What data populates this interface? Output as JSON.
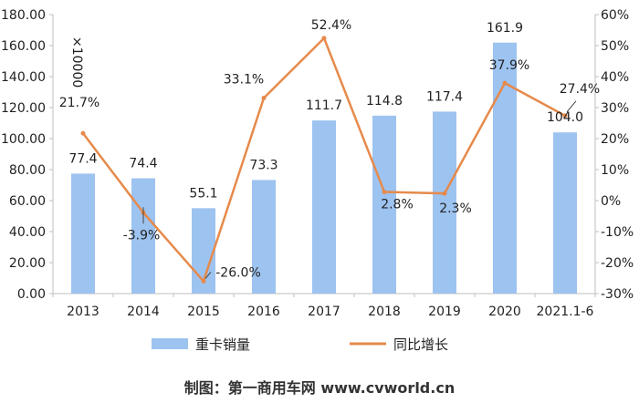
{
  "chart_data": {
    "type": "bar",
    "categories": [
      "2013",
      "2014",
      "2015",
      "2016",
      "2017",
      "2018",
      "2019",
      "2020",
      "2021.1-6"
    ],
    "series": [
      {
        "name": "重卡销量",
        "type": "bar",
        "axis": "left",
        "values": [
          77.4,
          74.4,
          55.1,
          73.3,
          111.7,
          114.8,
          117.4,
          161.9,
          104.0
        ],
        "labels": [
          "77.4",
          "74.4",
          "55.1",
          "73.3",
          "111.7",
          "114.8",
          "117.4",
          "161.9",
          "104.0"
        ],
        "color": "#9DC3F0"
      },
      {
        "name": "同比增长",
        "type": "line",
        "axis": "right",
        "values": [
          21.7,
          -3.9,
          -26.0,
          33.1,
          52.4,
          2.8,
          2.3,
          37.9,
          27.4
        ],
        "labels": [
          "21.7%",
          "-3.9%",
          "-26.0%",
          "33.1%",
          "52.4%",
          "2.8%",
          "2.3%",
          "37.9%",
          "27.4%"
        ],
        "color": "#E68A4B"
      }
    ],
    "left_axis": {
      "ylim": [
        0,
        180
      ],
      "ticks": [
        "0.00",
        "20.00",
        "40.00",
        "60.00",
        "80.00",
        "100.00",
        "120.00",
        "140.00",
        "160.00",
        "180.00"
      ],
      "unit_label": "×10000"
    },
    "right_axis": {
      "ylim": [
        -30,
        60
      ],
      "ticks": [
        "-30%",
        "-20%",
        "-10%",
        "0%",
        "10%",
        "20%",
        "30%",
        "40%",
        "50%",
        "60%"
      ]
    },
    "legend_position": "bottom"
  },
  "footer": {
    "credit": "制图：第一商用车网 www.cvworld.cn"
  }
}
